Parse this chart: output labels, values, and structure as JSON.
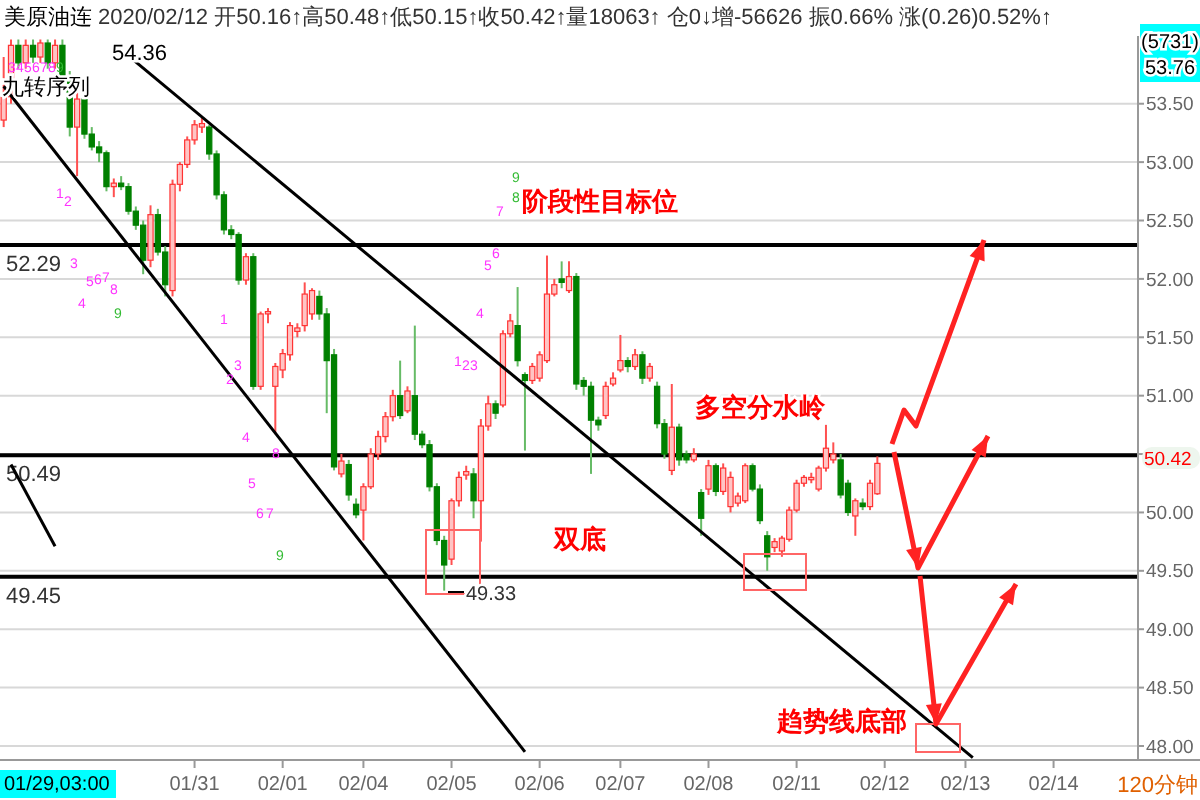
{
  "chart_data": {
    "type": "candlestick",
    "title": "美原油连",
    "subtitle": "2020/02/12 开50.16↑高50.48↑低50.15↑收50.42↑量18063↑ 仓0↓增-56626 振0.66% 涨(0.26)0.52%↑",
    "categories": [
      null,
      null,
      null,
      null,
      null,
      null,
      null,
      null,
      null,
      null,
      null,
      null,
      null,
      null,
      null,
      null,
      null,
      null,
      null,
      null,
      null,
      null,
      null,
      null,
      null,
      null,
      "01/31",
      null,
      null,
      null,
      null,
      null,
      null,
      null,
      null,
      null,
      null,
      null,
      "02/01",
      null,
      null,
      null,
      null,
      null,
      null,
      null,
      null,
      null,
      null,
      "02/04",
      null,
      null,
      null,
      null,
      null,
      null,
      null,
      null,
      null,
      null,
      null,
      "02/05",
      null,
      null,
      null,
      null,
      null,
      null,
      null,
      null,
      null,
      null,
      null,
      "02/06",
      null,
      null,
      null,
      null,
      null,
      null,
      null,
      null,
      null,
      null,
      "02/07",
      null,
      null,
      null,
      null,
      null,
      null,
      null,
      null,
      null,
      null,
      null,
      "02/08",
      null,
      null,
      null,
      null,
      null,
      null,
      null,
      null,
      null,
      null,
      null,
      "02/11",
      null,
      null,
      null,
      null,
      null,
      null,
      null,
      null,
      null,
      null,
      null,
      "02/12",
      null,
      null,
      null,
      null,
      null,
      null,
      null,
      null,
      null,
      null,
      "02/13",
      null,
      null,
      null,
      null,
      null,
      null,
      null,
      null,
      null,
      null,
      null,
      "02/14",
      null,
      null,
      null,
      null,
      null,
      null,
      null,
      null,
      null,
      null,
      null
    ],
    "ohlc": [
      [
        53.36,
        53.9,
        53.3,
        53.56
      ],
      [
        53.56,
        54.05,
        53.5,
        54.0
      ],
      [
        54.0,
        54.05,
        53.8,
        53.85
      ],
      [
        53.85,
        54.05,
        53.8,
        54.0
      ],
      [
        54.0,
        54.05,
        53.85,
        53.9
      ],
      [
        53.9,
        54.05,
        53.85,
        54.02
      ],
      [
        54.02,
        54.05,
        53.8,
        53.85
      ],
      [
        53.85,
        54.05,
        53.8,
        54.0
      ],
      [
        54.0,
        54.05,
        53.7,
        53.73
      ],
      [
        53.73,
        53.78,
        53.22,
        53.3
      ],
      [
        53.3,
        53.6,
        52.88,
        53.54
      ],
      [
        53.54,
        53.56,
        53.2,
        53.24
      ],
      [
        53.24,
        53.3,
        53.1,
        53.13
      ],
      [
        53.13,
        53.18,
        53.0,
        53.08
      ],
      [
        53.08,
        53.1,
        52.75,
        52.79
      ],
      [
        52.79,
        52.86,
        52.7,
        52.82
      ],
      [
        52.82,
        52.88,
        52.76,
        52.79
      ],
      [
        52.79,
        52.82,
        52.55,
        52.58
      ],
      [
        52.58,
        52.62,
        52.42,
        52.46
      ],
      [
        52.46,
        52.5,
        52.04,
        52.16
      ],
      [
        52.16,
        52.63,
        52.1,
        52.55
      ],
      [
        52.55,
        52.6,
        52.2,
        52.23
      ],
      [
        52.23,
        52.28,
        51.85,
        51.95
      ],
      [
        51.9,
        52.85,
        51.85,
        52.81
      ],
      [
        52.81,
        53.0,
        52.75,
        52.98
      ],
      [
        52.98,
        53.22,
        52.95,
        53.19
      ],
      [
        53.19,
        53.36,
        53.15,
        53.32
      ],
      [
        53.3,
        53.38,
        53.25,
        53.33
      ],
      [
        53.3,
        53.32,
        53.02,
        53.07
      ],
      [
        53.07,
        53.1,
        52.68,
        52.72
      ],
      [
        52.72,
        52.75,
        52.38,
        52.42
      ],
      [
        52.42,
        52.46,
        52.34,
        52.38
      ],
      [
        52.38,
        52.4,
        51.95,
        51.99
      ],
      [
        51.99,
        52.22,
        51.95,
        52.19
      ],
      [
        52.19,
        52.22,
        51.05,
        51.08
      ],
      [
        51.08,
        51.72,
        51.05,
        51.7
      ],
      [
        51.7,
        51.75,
        51.62,
        51.72
      ],
      [
        51.08,
        51.28,
        50.67,
        51.25
      ],
      [
        51.22,
        51.4,
        51.15,
        51.36
      ],
      [
        51.35,
        51.63,
        51.3,
        51.6
      ],
      [
        51.55,
        51.62,
        51.5,
        51.58
      ],
      [
        51.6,
        51.97,
        51.55,
        51.87
      ],
      [
        51.7,
        51.92,
        51.65,
        51.9
      ],
      [
        51.85,
        51.9,
        51.65,
        51.7
      ],
      [
        51.7,
        51.75,
        50.85,
        51.3
      ],
      [
        51.35,
        51.4,
        50.36,
        50.39
      ],
      [
        50.33,
        50.5,
        50.3,
        50.44
      ],
      [
        50.41,
        50.45,
        50.1,
        50.15
      ],
      [
        50.07,
        50.12,
        49.95,
        49.98
      ],
      [
        50.02,
        50.25,
        49.76,
        50.22
      ],
      [
        50.22,
        50.55,
        50.2,
        50.5
      ],
      [
        50.5,
        50.7,
        50.45,
        50.65
      ],
      [
        50.65,
        50.86,
        50.6,
        50.82
      ],
      [
        50.82,
        51.05,
        50.78,
        51.0
      ],
      [
        51.0,
        51.3,
        50.8,
        50.83
      ],
      [
        50.87,
        51.08,
        50.85,
        51.04
      ],
      [
        51.0,
        51.6,
        50.62,
        50.67
      ],
      [
        50.67,
        50.7,
        50.55,
        50.58
      ],
      [
        50.58,
        50.62,
        50.18,
        50.22
      ],
      [
        50.22,
        50.25,
        49.72,
        49.76
      ],
      [
        49.76,
        49.8,
        49.33,
        49.55
      ],
      [
        49.6,
        50.12,
        49.55,
        50.1
      ],
      [
        50.1,
        50.35,
        50.05,
        50.3
      ],
      [
        50.32,
        50.4,
        50.28,
        50.35
      ],
      [
        50.33,
        50.38,
        49.95,
        50.1
      ],
      [
        50.1,
        50.8,
        49.75,
        50.74
      ],
      [
        50.74,
        51.0,
        50.7,
        50.93
      ],
      [
        50.93,
        50.96,
        50.8,
        50.85
      ],
      [
        50.92,
        51.56,
        50.9,
        51.53
      ],
      [
        51.53,
        51.7,
        51.5,
        51.64
      ],
      [
        51.6,
        51.93,
        51.25,
        51.3
      ],
      [
        51.18,
        51.2,
        50.53,
        51.13
      ],
      [
        51.13,
        51.28,
        51.1,
        51.25
      ],
      [
        51.15,
        51.38,
        51.12,
        51.35
      ],
      [
        51.3,
        52.2,
        51.28,
        51.87
      ],
      [
        51.87,
        52.0,
        51.85,
        51.95
      ],
      [
        52.0,
        52.15,
        51.92,
        51.97
      ],
      [
        51.9,
        52.15,
        51.88,
        52.02
      ],
      [
        52.02,
        52.05,
        51.05,
        51.1
      ],
      [
        51.13,
        51.16,
        51.0,
        51.08
      ],
      [
        51.08,
        51.12,
        50.33,
        50.79
      ],
      [
        50.79,
        50.82,
        50.7,
        50.75
      ],
      [
        50.83,
        51.12,
        50.8,
        51.08
      ],
      [
        51.1,
        51.2,
        51.08,
        51.15
      ],
      [
        51.22,
        51.52,
        51.2,
        51.3
      ],
      [
        51.3,
        51.33,
        51.2,
        51.25
      ],
      [
        51.25,
        51.4,
        51.22,
        51.35
      ],
      [
        51.35,
        51.38,
        51.1,
        51.15
      ],
      [
        51.15,
        51.28,
        51.12,
        51.25
      ],
      [
        51.08,
        51.12,
        50.72,
        50.76
      ],
      [
        50.76,
        50.8,
        50.46,
        50.5
      ],
      [
        50.36,
        51.1,
        50.32,
        50.73
      ],
      [
        50.73,
        50.76,
        50.4,
        50.45
      ],
      [
        50.5,
        50.53,
        50.42,
        50.45
      ],
      [
        50.45,
        50.55,
        50.43,
        50.5
      ],
      [
        50.17,
        50.2,
        49.8,
        49.95
      ],
      [
        50.2,
        50.45,
        50.15,
        50.4
      ],
      [
        50.4,
        50.42,
        50.14,
        50.18
      ],
      [
        50.18,
        50.42,
        50.15,
        50.38
      ],
      [
        50.05,
        50.35,
        50.0,
        50.3
      ],
      [
        50.08,
        50.17,
        50.05,
        50.14
      ],
      [
        50.1,
        50.42,
        50.08,
        50.4
      ],
      [
        50.4,
        50.42,
        50.18,
        50.2
      ],
      [
        50.2,
        50.24,
        49.9,
        49.93
      ],
      [
        49.8,
        49.84,
        49.5,
        49.62
      ],
      [
        49.7,
        49.78,
        49.66,
        49.75
      ],
      [
        49.67,
        49.8,
        49.62,
        49.78
      ],
      [
        49.77,
        50.05,
        49.75,
        50.02
      ],
      [
        50.02,
        50.28,
        50.0,
        50.25
      ],
      [
        50.25,
        50.32,
        50.22,
        50.3
      ],
      [
        50.28,
        50.34,
        50.25,
        50.3
      ],
      [
        50.2,
        50.4,
        50.18,
        50.38
      ],
      [
        50.38,
        50.75,
        50.35,
        50.55
      ],
      [
        50.45,
        50.6,
        50.42,
        50.5
      ],
      [
        50.45,
        50.5,
        50.12,
        50.15
      ],
      [
        50.25,
        50.28,
        49.97,
        50.0
      ],
      [
        49.97,
        50.12,
        49.8,
        50.1
      ],
      [
        50.08,
        50.12,
        50.02,
        50.05
      ],
      [
        50.05,
        50.28,
        50.02,
        50.25
      ],
      [
        50.16,
        50.48,
        50.15,
        50.42
      ],
      null,
      null,
      null,
      null,
      null,
      null,
      null,
      null,
      null,
      null,
      null,
      null,
      null,
      null,
      null,
      null,
      null,
      null,
      null,
      null,
      null,
      null,
      null,
      null,
      null,
      null,
      null,
      null,
      null,
      null,
      null,
      null,
      null,
      null,
      null
    ],
    "series": [
      {
        "type": "line",
        "color": "#000000",
        "values": [
          null,
          null,
          null,
          null,
          null,
          null,
          null,
          null,
          null,
          null,
          null,
          null,
          null,
          null,
          null,
          null,
          null,
          53.91,
          null,
          null,
          null,
          null,
          null,
          null,
          null,
          null,
          null,
          null,
          null,
          null,
          null,
          null,
          null,
          null,
          null,
          null,
          null,
          null,
          null,
          null,
          null,
          null,
          null,
          null,
          null,
          null,
          null,
          null,
          null,
          null,
          null,
          null,
          null,
          null,
          null,
          null,
          null,
          null,
          null,
          null,
          null,
          null,
          null,
          null,
          null,
          null,
          null,
          null,
          null,
          null,
          null,
          null,
          null,
          null,
          null,
          null,
          null,
          null,
          null,
          null,
          null,
          null,
          null,
          null,
          null,
          null,
          null,
          null,
          null,
          null,
          null,
          null,
          null,
          null,
          null,
          null,
          null,
          null,
          null,
          null,
          null,
          null,
          null,
          null,
          null,
          null,
          null,
          null,
          null,
          null,
          null,
          null,
          null,
          null,
          null,
          null,
          null,
          null,
          null,
          null,
          null,
          null,
          null,
          null,
          null,
          null,
          null,
          null,
          null,
          null,
          null,
          null,
          47.9,
          null,
          null,
          null,
          null,
          null,
          null,
          null,
          null,
          null,
          null,
          null,
          null,
          null,
          null,
          null,
          null,
          null,
          null,
          null,
          null,
          null,
          null
        ]
      },
      {
        "type": "line",
        "color": "#000000",
        "values": [
          53.65,
          null,
          null,
          null,
          null,
          null,
          null,
          null,
          null,
          null,
          null,
          null,
          null,
          null,
          null,
          null,
          null,
          null,
          null,
          null,
          null,
          null,
          null,
          null,
          null,
          null,
          null,
          null,
          null,
          null,
          null,
          null,
          null,
          null,
          null,
          null,
          null,
          null,
          null,
          null,
          null,
          null,
          null,
          null,
          null,
          null,
          null,
          null,
          null,
          null,
          null,
          null,
          null,
          null,
          null,
          null,
          null,
          null,
          null,
          null,
          null,
          null,
          null,
          null,
          null,
          null,
          null,
          null,
          null,
          null,
          null,
          47.95,
          null,
          null,
          null,
          null,
          null,
          null,
          null,
          null,
          null,
          null,
          null,
          null,
          null,
          null,
          null,
          null,
          null,
          null,
          null,
          null,
          null,
          null,
          null,
          null,
          null,
          null,
          null,
          null,
          null,
          null,
          null,
          null,
          null,
          null,
          null,
          null,
          null,
          null,
          null,
          null,
          null,
          null,
          null,
          null,
          null,
          null,
          null,
          null,
          null,
          null,
          null,
          null,
          null,
          null,
          null,
          null,
          null,
          null,
          null,
          null,
          null,
          null,
          null,
          null,
          null,
          null,
          null,
          null,
          null,
          null,
          null,
          null,
          null,
          null,
          null,
          null,
          null,
          null,
          null,
          null,
          null,
          null,
          null
        ]
      },
      {
        "type": "line",
        "color": "#000000",
        "values": [
          null,
          50.41,
          null,
          null,
          null,
          null,
          null,
          49.71,
          null,
          null,
          null,
          null,
          null,
          null,
          null,
          null,
          null,
          null,
          null,
          null,
          null,
          null,
          null,
          null,
          null,
          null,
          null,
          null,
          null,
          null,
          null,
          null,
          null,
          null,
          null,
          null,
          null,
          null,
          null,
          null,
          null,
          null,
          null,
          null,
          null,
          null,
          null,
          null,
          null,
          null,
          null,
          null,
          null,
          null,
          null,
          null,
          null,
          null,
          null,
          null,
          null,
          null,
          null,
          null,
          null,
          null,
          null,
          null,
          null,
          null,
          null,
          null,
          null,
          null,
          null,
          null,
          null,
          null,
          null,
          null,
          null,
          null,
          null,
          null,
          null,
          null,
          null,
          null,
          null,
          null,
          null,
          null,
          null,
          null,
          null,
          null,
          null,
          null,
          null,
          null,
          null,
          null,
          null,
          null,
          null,
          null,
          null,
          null,
          null,
          null,
          null,
          null,
          null,
          null,
          null,
          null,
          null,
          null,
          null,
          null,
          null,
          null,
          null,
          null,
          null,
          null,
          null,
          null,
          null,
          null,
          null,
          null,
          null,
          null,
          null,
          null,
          null,
          null,
          null,
          null,
          null,
          null,
          null,
          null,
          null,
          null,
          null,
          null,
          null,
          null,
          null,
          null,
          null,
          null,
          null
        ]
      }
    ],
    "ylim": [
      47.88,
      54.08
    ],
    "yticks": [
      {
        "value": 48,
        "label": "48.00"
      },
      {
        "value": 48.5,
        "label": "48.50"
      },
      {
        "value": 49,
        "label": "49.00"
      },
      {
        "value": 49.5,
        "label": "49.50"
      },
      {
        "value": 50,
        "label": "50.00"
      },
      {
        "value": 50.5,
        "label": null
      },
      {
        "value": 51,
        "label": "51.00"
      },
      {
        "value": 51.5,
        "label": "51.50"
      },
      {
        "value": 52,
        "label": "52.00"
      },
      {
        "value": 52.5,
        "label": "52.50"
      },
      {
        "value": 53,
        "label": "53.00"
      },
      {
        "value": 53.5,
        "label": "53.50"
      }
    ],
    "grid": "y",
    "ref_lines": [
      {
        "axis": "y",
        "value": 52.29,
        "label": "52.29",
        "color": "#000000"
      },
      {
        "axis": "y",
        "value": 50.49,
        "label": "50.49",
        "color": "#000000"
      },
      {
        "axis": "y",
        "value": 49.45,
        "label": "49.45",
        "color": "#000000"
      }
    ],
    "annotations": [
      "九转序列",
      "3",
      "4",
      "5",
      "6",
      "7",
      "8",
      "9",
      "1",
      "2",
      "3",
      "4",
      "5",
      "6",
      "7",
      "8",
      "9",
      "1",
      "2",
      "3",
      "4",
      "5",
      "6",
      "7",
      "8",
      "9",
      "1",
      "2",
      "3",
      "4",
      "5",
      "6",
      "7",
      "8",
      "9",
      "阶段性目标位",
      "多空分水岭",
      "双底",
      "趋势线底部",
      "54.36",
      "49.33",
      "(5731)",
      "53.76",
      "50.42",
      "120分钟",
      "01/29,03:00"
    ]
  }
}
